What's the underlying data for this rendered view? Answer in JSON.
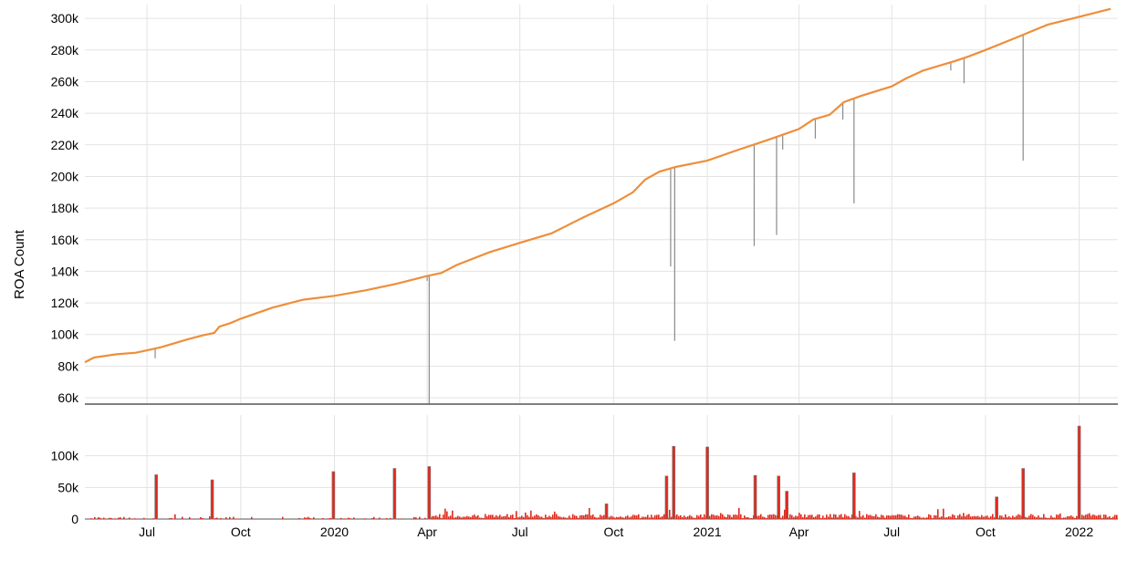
{
  "chart_data": [
    {
      "type": "line",
      "title": "",
      "ylabel": "ROA Count",
      "ylim": [
        56000,
        307000
      ],
      "y_ticks": [
        60000,
        80000,
        100000,
        120000,
        140000,
        160000,
        180000,
        200000,
        220000,
        240000,
        260000,
        280000,
        300000
      ],
      "y_tick_labels": [
        "60k",
        "80k",
        "100k",
        "120k",
        "140k",
        "160k",
        "180k",
        "200k",
        "220k",
        "240k",
        "260k",
        "280k",
        "300k"
      ],
      "grid": true,
      "colors": {
        "line": "#ee8e3a",
        "dips": "#8a8a8a"
      },
      "trend": [
        [
          "2019-05-01",
          82500
        ],
        [
          "2019-05-10",
          85500
        ],
        [
          "2019-06-01",
          87500
        ],
        [
          "2019-06-20",
          88500
        ],
        [
          "2019-07-01",
          90000
        ],
        [
          "2019-07-15",
          92000
        ],
        [
          "2019-08-10",
          97000
        ],
        [
          "2019-08-25",
          99500
        ],
        [
          "2019-09-05",
          101000
        ],
        [
          "2019-09-10",
          105000
        ],
        [
          "2019-09-20",
          107000
        ],
        [
          "2019-10-01",
          110000
        ],
        [
          "2019-11-01",
          117000
        ],
        [
          "2019-12-01",
          122000
        ],
        [
          "2020-01-01",
          124500
        ],
        [
          "2020-02-01",
          128000
        ],
        [
          "2020-03-01",
          132000
        ],
        [
          "2020-04-01",
          137000
        ],
        [
          "2020-04-15",
          139000
        ],
        [
          "2020-04-30",
          144000
        ],
        [
          "2020-06-01",
          152000
        ],
        [
          "2020-07-01",
          158000
        ],
        [
          "2020-08-01",
          164000
        ],
        [
          "2020-09-01",
          174000
        ],
        [
          "2020-10-01",
          183000
        ],
        [
          "2020-10-20",
          190000
        ],
        [
          "2020-11-01",
          198000
        ],
        [
          "2020-11-15",
          203000
        ],
        [
          "2020-12-01",
          206000
        ],
        [
          "2021-01-01",
          210000
        ],
        [
          "2021-02-01",
          217000
        ],
        [
          "2021-03-01",
          223000
        ],
        [
          "2021-04-01",
          230000
        ],
        [
          "2021-04-15",
          236000
        ],
        [
          "2021-05-01",
          239000
        ],
        [
          "2021-05-15",
          247000
        ],
        [
          "2021-06-01",
          251000
        ],
        [
          "2021-07-01",
          257000
        ],
        [
          "2021-07-15",
          262000
        ],
        [
          "2021-08-01",
          267000
        ],
        [
          "2021-09-01",
          273000
        ],
        [
          "2021-09-15",
          276000
        ],
        [
          "2021-10-01",
          280000
        ],
        [
          "2021-11-01",
          288000
        ],
        [
          "2021-12-01",
          296000
        ],
        [
          "2022-01-01",
          301000
        ],
        [
          "2022-02-01",
          306000
        ]
      ],
      "dips": [
        [
          "2019-07-09",
          85000
        ],
        [
          "2020-04-03",
          56000
        ],
        [
          "2020-04-01",
          134000
        ],
        [
          "2020-11-26",
          143000
        ],
        [
          "2020-11-30",
          96000
        ],
        [
          "2021-02-16",
          156000
        ],
        [
          "2021-03-10",
          163000
        ],
        [
          "2021-03-16",
          217000
        ],
        [
          "2021-04-17",
          224000
        ],
        [
          "2021-05-14",
          236000
        ],
        [
          "2021-05-25",
          183000
        ],
        [
          "2021-08-28",
          267000
        ],
        [
          "2021-09-10",
          259000
        ],
        [
          "2021-11-07",
          210000
        ]
      ]
    },
    {
      "type": "bar",
      "title": "",
      "ylim": [
        0,
        150000
      ],
      "y_ticks": [
        0,
        50000,
        100000
      ],
      "y_tick_labels": [
        "0",
        "50k",
        "100k"
      ],
      "grid": true,
      "colors": {
        "bar": "#e02a1c",
        "bar_edge": "#7a7a7a"
      },
      "x_ticks": [
        "2019-07-01",
        "2019-10-01",
        "2020-01-01",
        "2020-04-01",
        "2020-07-01",
        "2020-10-01",
        "2021-01-01",
        "2021-04-01",
        "2021-07-01",
        "2021-10-01",
        "2022-01-01"
      ],
      "x_tick_labels": [
        "Jul",
        "Oct",
        "2020",
        "Apr",
        "Jul",
        "Oct",
        "2021",
        "Apr",
        "Jul",
        "Oct",
        "2022"
      ],
      "x_range": [
        "2019-05-01",
        "2022-02-08"
      ],
      "spikes": [
        [
          "2019-07-10",
          70000
        ],
        [
          "2019-09-03",
          62000
        ],
        [
          "2019-12-31",
          75000
        ],
        [
          "2020-02-29",
          80000
        ],
        [
          "2020-04-03",
          83000
        ],
        [
          "2020-09-24",
          24000
        ],
        [
          "2020-11-22",
          68000
        ],
        [
          "2020-11-29",
          115000
        ],
        [
          "2021-01-01",
          114000
        ],
        [
          "2021-02-17",
          69000
        ],
        [
          "2021-03-12",
          68000
        ],
        [
          "2021-03-20",
          44000
        ],
        [
          "2021-05-25",
          73000
        ],
        [
          "2021-10-12",
          35000
        ],
        [
          "2021-11-07",
          80000
        ],
        [
          "2022-01-01",
          147000
        ]
      ]
    }
  ]
}
